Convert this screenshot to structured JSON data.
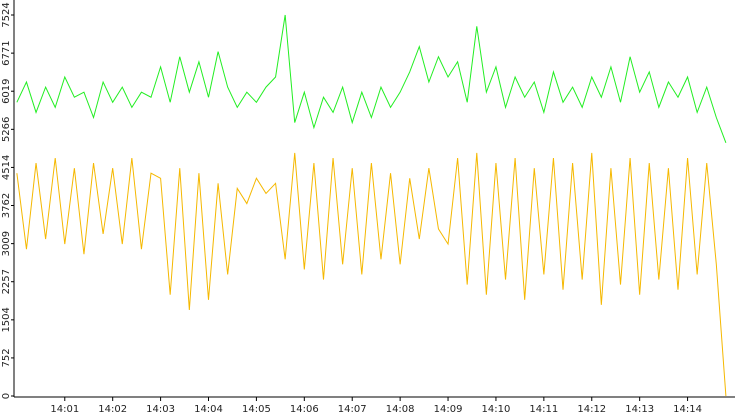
{
  "chart_data": {
    "type": "line",
    "x": [
      0,
      0.2,
      0.4,
      0.6,
      0.8,
      1,
      1.2,
      1.4,
      1.6,
      1.8,
      2,
      2.2,
      2.4,
      2.6,
      2.8,
      3,
      3.2,
      3.4,
      3.6,
      3.8,
      4,
      4.2,
      4.4,
      4.6,
      4.8,
      5,
      5.2,
      5.4,
      5.6,
      5.8,
      6,
      6.2,
      6.4,
      6.6,
      6.8,
      7,
      7.2,
      7.4,
      7.6,
      7.8,
      8,
      8.2,
      8.4,
      8.6,
      8.8,
      9,
      9.2,
      9.4,
      9.6,
      9.8,
      10,
      10.2,
      10.4,
      10.6,
      10.8,
      11,
      11.2,
      11.4,
      11.6,
      11.8,
      12,
      12.2,
      12.4,
      12.6,
      12.8,
      13,
      13.2,
      13.4,
      13.6,
      13.8,
      14,
      14.2,
      14.4,
      14.6,
      14.8
    ],
    "series": [
      {
        "color": "#22ee22",
        "values": [
          5800,
          6200,
          5600,
          6100,
          5700,
          6300,
          5900,
          6000,
          5500,
          6200,
          5800,
          6100,
          5700,
          6000,
          5900,
          6500,
          5800,
          6700,
          6000,
          6600,
          5900,
          6800,
          6100,
          5700,
          6000,
          5800,
          6100,
          6300,
          7524,
          5400,
          6000,
          5300,
          5900,
          5600,
          6100,
          5400,
          6000,
          5500,
          6100,
          5700,
          6000,
          6400,
          6900,
          6200,
          6700,
          6300,
          6600,
          5800,
          7300,
          6000,
          6500,
          5700,
          6300,
          5900,
          6200,
          5600,
          6400,
          5800,
          6100,
          5700,
          6300,
          5900,
          6500,
          5800,
          6700,
          6000,
          6400,
          5700,
          6200,
          5900,
          6300,
          5600,
          6100,
          5500,
          5000
        ]
      },
      {
        "color": "#f5b800",
        "values": [
          4400,
          2900,
          4600,
          3100,
          4700,
          3000,
          4500,
          2800,
          4600,
          3200,
          4500,
          3000,
          4700,
          2900,
          4400,
          4300,
          2000,
          4500,
          1700,
          4400,
          1900,
          4200,
          2400,
          4100,
          3800,
          4300,
          4000,
          4200,
          2700,
          4800,
          2500,
          4600,
          2300,
          4700,
          2600,
          4500,
          2400,
          4600,
          2700,
          4400,
          2600,
          4300,
          3100,
          4500,
          3300,
          3000,
          4700,
          2200,
          4800,
          2000,
          4600,
          2300,
          4700,
          1900,
          4500,
          2400,
          4700,
          2100,
          4600,
          2300,
          4800,
          1800,
          4500,
          2200,
          4700,
          2000,
          4600,
          2300,
          4500,
          2100,
          4700,
          2400,
          4600,
          2600,
          0
        ]
      }
    ],
    "xlim": [
      -0.06,
      14.99
    ],
    "xticks": [
      {
        "value": 1,
        "label": "14:01"
      },
      {
        "value": 2,
        "label": "14:02"
      },
      {
        "value": 3,
        "label": "14:03"
      },
      {
        "value": 4,
        "label": "14:04"
      },
      {
        "value": 5,
        "label": "14:05"
      },
      {
        "value": 6,
        "label": "14:06"
      },
      {
        "value": 7,
        "label": "14:07"
      },
      {
        "value": 8,
        "label": "14:08"
      },
      {
        "value": 9,
        "label": "14:09"
      },
      {
        "value": 10,
        "label": "14:10"
      },
      {
        "value": 11,
        "label": "14:11"
      },
      {
        "value": 12,
        "label": "14:12"
      },
      {
        "value": 13,
        "label": "14:13"
      },
      {
        "value": 14,
        "label": "14:14"
      }
    ],
    "ylim": [
      0,
      7524
    ],
    "yticks": [
      0,
      752,
      1504,
      2257,
      3009,
      3762,
      4514,
      5266,
      6019,
      6771,
      7524
    ]
  }
}
